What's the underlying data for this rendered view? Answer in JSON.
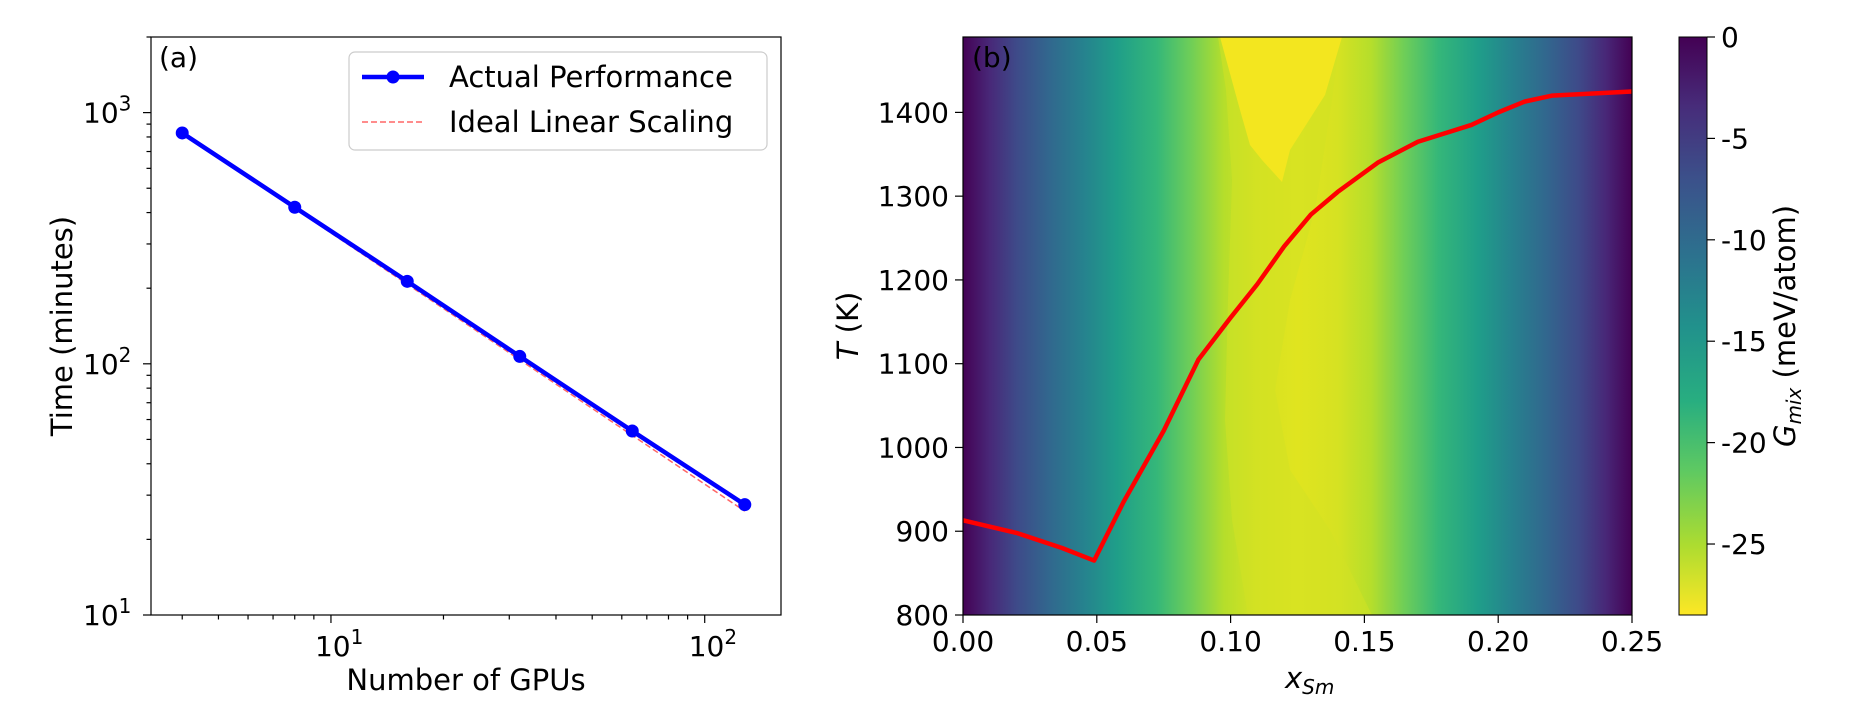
{
  "chart_data": [
    {
      "type": "line",
      "panel_label": "(a)",
      "xscale": "log",
      "yscale": "log",
      "xlabel": "Number of GPUs",
      "ylabel": "Time (minutes)",
      "xlim": [
        3.3,
        160
      ],
      "ylim": [
        10,
        2000
      ],
      "xticks": [
        {
          "value": 10,
          "base": "10",
          "exp": "1"
        },
        {
          "value": 100,
          "base": "10",
          "exp": "2"
        }
      ],
      "yticks": [
        {
          "value": 10,
          "base": "10",
          "exp": "1"
        },
        {
          "value": 100,
          "base": "10",
          "exp": "2"
        },
        {
          "value": 1000,
          "base": "10",
          "exp": "3"
        }
      ],
      "legend_position": "top-right",
      "series": [
        {
          "name": "Actual Performance",
          "color": "#0000ff",
          "style": "solid-markers",
          "x": [
            4,
            8,
            16,
            32,
            64,
            128
          ],
          "values": [
            830,
            420,
            213,
            107,
            54,
            27.5
          ]
        },
        {
          "name": "Ideal Linear Scaling",
          "color": "#ff6666",
          "style": "dashed",
          "x": [
            4,
            8,
            16,
            32,
            64,
            128
          ],
          "values": [
            830,
            415,
            207.5,
            103.75,
            51.9,
            25.9
          ]
        }
      ]
    },
    {
      "type": "heatmap",
      "panel_label": "(b)",
      "xlabel_main": "x",
      "xlabel_sub": "Sm",
      "ylabel_main": "T",
      "ylabel_rest": " (K)",
      "xlim": [
        0.0,
        0.25
      ],
      "ylim": [
        800,
        1490
      ],
      "xticks": [
        "0.00",
        "0.05",
        "0.10",
        "0.15",
        "0.20",
        "0.25"
      ],
      "yticks": [
        "800",
        "900",
        "1000",
        "1100",
        "1200",
        "1300",
        "1400"
      ],
      "colorbar": {
        "label_main": "G",
        "label_sub": "mix",
        "label_rest": " (meV/atom)",
        "range": [
          -28.5,
          0
        ],
        "ticks": [
          "0",
          "-5",
          "-10",
          "-15",
          "-20",
          "-25"
        ],
        "tick_values": [
          0,
          -5,
          -10,
          -15,
          -20,
          -25
        ]
      },
      "boundary_line": {
        "color": "#ff0000",
        "x": [
          0.0,
          0.02,
          0.037,
          0.049,
          0.06,
          0.075,
          0.088,
          0.1,
          0.11,
          0.12,
          0.13,
          0.14,
          0.155,
          0.17,
          0.19,
          0.2,
          0.21,
          0.22,
          0.25
        ],
        "y": [
          913,
          898,
          880,
          865,
          935,
          1020,
          1105,
          1155,
          1195,
          1240,
          1278,
          1305,
          1340,
          1365,
          1385,
          1400,
          1413,
          1420,
          1425
        ]
      }
    }
  ]
}
